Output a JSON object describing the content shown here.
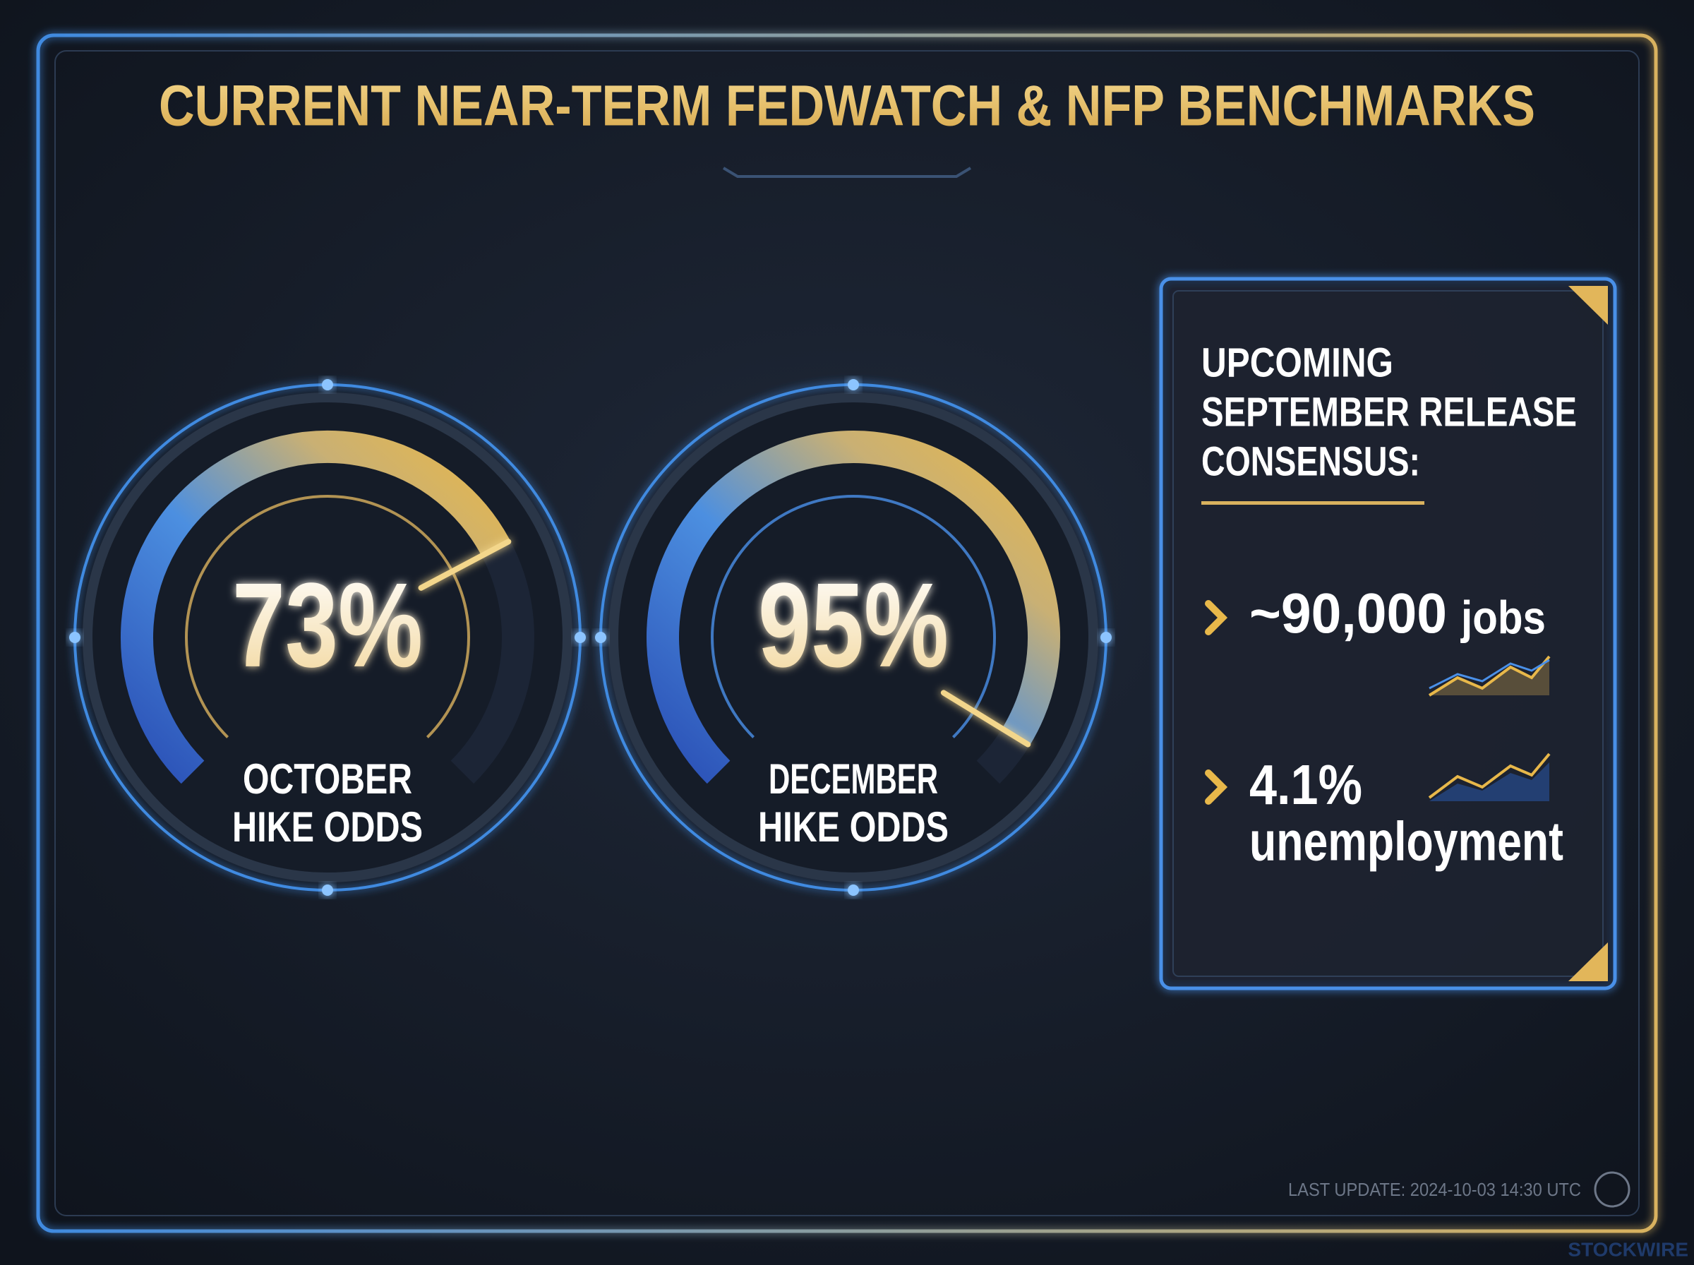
{
  "header": {
    "title": "CURRENT NEAR-TERM FEDWATCH & NFP BENCHMARKS"
  },
  "gauges": [
    {
      "value": 73,
      "value_label": "73%",
      "range": [
        0,
        100
      ],
      "label": [
        "OCTOBER",
        "HIKE ODDS"
      ]
    },
    {
      "value": 95,
      "value_label": "95%",
      "range": [
        0,
        100
      ],
      "label": [
        "DECEMBER",
        "HIKE ODDS"
      ]
    }
  ],
  "panel": {
    "title": [
      "UPCOMING",
      "SEPTEMBER RELEASE",
      "CONSENSUS:"
    ],
    "items": [
      {
        "figure": "~90,000",
        "unit": "jobs"
      },
      {
        "figure": "4.1%",
        "unit": "unemployment"
      }
    ]
  },
  "footer": {
    "update": "LAST UPDATE: 2024-10-03 14:30 UTC",
    "brand": "STOCKWIRE"
  }
}
